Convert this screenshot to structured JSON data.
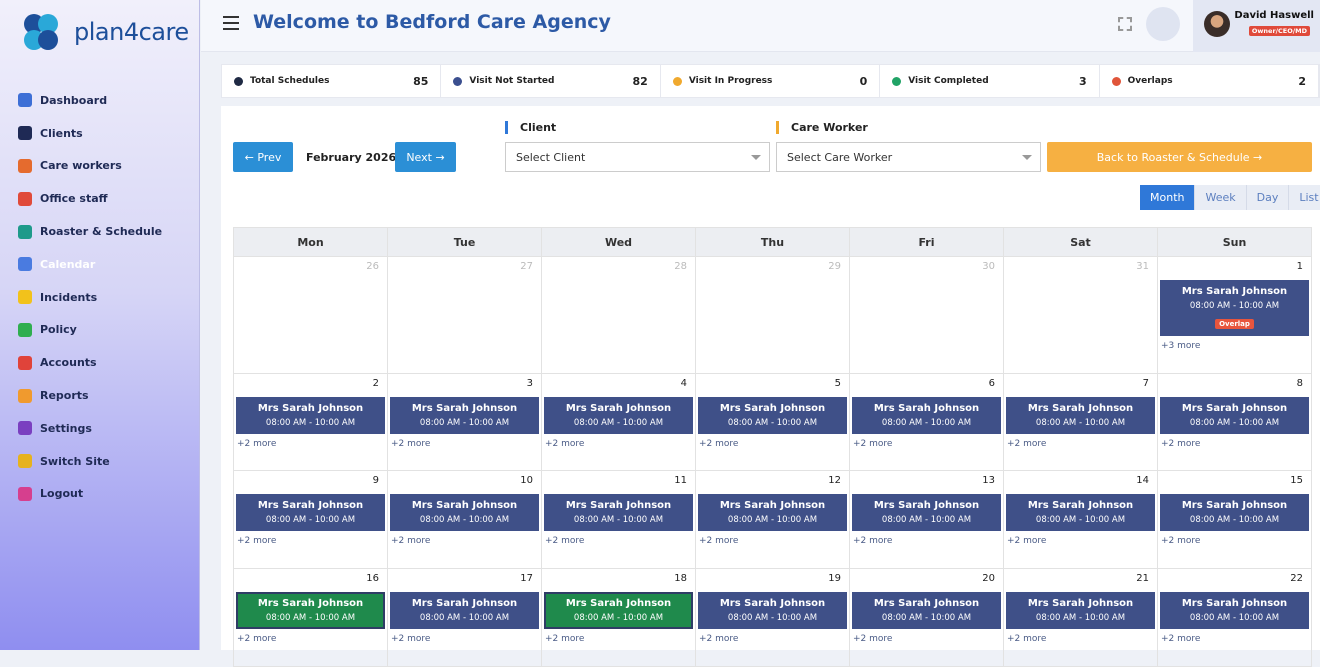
{
  "brand": {
    "name": "plan4care"
  },
  "sidebar": {
    "items": [
      "Dashboard",
      "Clients",
      "Care workers",
      "Office staff",
      "Roaster & Schedule",
      "Calendar",
      "Incidents",
      "Policy",
      "Accounts",
      "Reports",
      "Settings",
      "Switch Site",
      "Logout"
    ],
    "active": 5
  },
  "header": {
    "title": "Welcome to Bedford Care Agency",
    "user": {
      "name": "David Haswell",
      "role": "Owner/CEO/MD"
    }
  },
  "stats": [
    {
      "label": "Total Schedules",
      "value": 85,
      "color": "#1f2a44"
    },
    {
      "label": "Visit Not Started",
      "value": 82,
      "color": "#3b4f8f"
    },
    {
      "label": "Visit In Progress",
      "value": 0,
      "color": "#f0a92e"
    },
    {
      "label": "Visit Completed",
      "value": 3,
      "color": "#21a366"
    },
    {
      "label": "Overlaps",
      "value": 2,
      "color": "#e0553a"
    }
  ],
  "toolbar": {
    "prev": "← Prev",
    "month": "February 2026",
    "next": "Next →",
    "client_label": "Client",
    "client_placeholder": "Select Client",
    "worker_label": "Care Worker",
    "worker_placeholder": "Select Care Worker",
    "back": "Back to Roaster & Schedule →"
  },
  "views": [
    {
      "label": "Month",
      "active": true
    },
    {
      "label": "Week",
      "active": false
    },
    {
      "label": "Day",
      "active": false
    },
    {
      "label": "List",
      "active": false
    }
  ],
  "calendar": {
    "weekdays": [
      "Mon",
      "Tue",
      "Wed",
      "Thu",
      "Fri",
      "Sat",
      "Sun"
    ],
    "weeks": [
      [
        {
          "day": 26,
          "muted": true
        },
        {
          "day": 27,
          "muted": true
        },
        {
          "day": 28,
          "muted": true
        },
        {
          "day": 29,
          "muted": true
        },
        {
          "day": 30,
          "muted": true
        },
        {
          "day": 31,
          "muted": true
        },
        {
          "day": 1,
          "events": [
            {
              "name": "Mrs Sarah Johnson",
              "time": "08:00 AM - 10:00 AM",
              "badge": "Overlap",
              "color": "#3f5088"
            }
          ],
          "more": "+3 more"
        }
      ],
      [
        {
          "day": 2,
          "events": [
            {
              "name": "Mrs Sarah Johnson",
              "time": "08:00 AM - 10:00 AM",
              "color": "#3f5088"
            }
          ],
          "more": "+2 more"
        },
        {
          "day": 3,
          "events": [
            {
              "name": "Mrs Sarah Johnson",
              "time": "08:00 AM - 10:00 AM",
              "color": "#3f5088"
            }
          ],
          "more": "+2 more"
        },
        {
          "day": 4,
          "events": [
            {
              "name": "Mrs Sarah Johnson",
              "time": "08:00 AM - 10:00 AM",
              "color": "#3f5088"
            }
          ],
          "more": "+2 more"
        },
        {
          "day": 5,
          "events": [
            {
              "name": "Mrs Sarah Johnson",
              "time": "08:00 AM - 10:00 AM",
              "color": "#3f5088"
            }
          ],
          "more": "+2 more"
        },
        {
          "day": 6,
          "events": [
            {
              "name": "Mrs Sarah Johnson",
              "time": "08:00 AM - 10:00 AM",
              "color": "#3f5088"
            }
          ],
          "more": "+2 more"
        },
        {
          "day": 7,
          "events": [
            {
              "name": "Mrs Sarah Johnson",
              "time": "08:00 AM - 10:00 AM",
              "color": "#3f5088"
            }
          ],
          "more": "+2 more"
        },
        {
          "day": 8,
          "events": [
            {
              "name": "Mrs Sarah Johnson",
              "time": "08:00 AM - 10:00 AM",
              "color": "#3f5088"
            }
          ],
          "more": "+2 more"
        }
      ],
      [
        {
          "day": 9,
          "events": [
            {
              "name": "Mrs Sarah Johnson",
              "time": "08:00 AM - 10:00 AM",
              "color": "#3f5088"
            }
          ],
          "more": "+2 more"
        },
        {
          "day": 10,
          "events": [
            {
              "name": "Mrs Sarah Johnson",
              "time": "08:00 AM - 10:00 AM",
              "color": "#3f5088"
            }
          ],
          "more": "+2 more"
        },
        {
          "day": 11,
          "events": [
            {
              "name": "Mrs Sarah Johnson",
              "time": "08:00 AM - 10:00 AM",
              "color": "#3f5088"
            }
          ],
          "more": "+2 more"
        },
        {
          "day": 12,
          "events": [
            {
              "name": "Mrs Sarah Johnson",
              "time": "08:00 AM - 10:00 AM",
              "color": "#3f5088"
            }
          ],
          "more": "+2 more"
        },
        {
          "day": 13,
          "events": [
            {
              "name": "Mrs Sarah Johnson",
              "time": "08:00 AM - 10:00 AM",
              "color": "#3f5088"
            }
          ],
          "more": "+2 more"
        },
        {
          "day": 14,
          "events": [
            {
              "name": "Mrs Sarah Johnson",
              "time": "08:00 AM - 10:00 AM",
              "color": "#3f5088"
            }
          ],
          "more": "+2 more"
        },
        {
          "day": 15,
          "events": [
            {
              "name": "Mrs Sarah Johnson",
              "time": "08:00 AM - 10:00 AM",
              "color": "#3f5088"
            }
          ],
          "more": "+2 more"
        }
      ],
      [
        {
          "day": 16,
          "events": [
            {
              "name": "Mrs Sarah Johnson",
              "time": "08:00 AM - 10:00 AM",
              "color": "#1f8a4c"
            }
          ],
          "more": "+2 more"
        },
        {
          "day": 17,
          "events": [
            {
              "name": "Mrs Sarah Johnson",
              "time": "08:00 AM - 10:00 AM",
              "color": "#3f5088"
            }
          ],
          "more": "+2 more"
        },
        {
          "day": 18,
          "events": [
            {
              "name": "Mrs Sarah Johnson",
              "time": "08:00 AM - 10:00 AM",
              "color": "#1f8a4c"
            }
          ],
          "more": "+2 more"
        },
        {
          "day": 19,
          "events": [
            {
              "name": "Mrs Sarah Johnson",
              "time": "08:00 AM - 10:00 AM",
              "color": "#3f5088"
            }
          ],
          "more": "+2 more"
        },
        {
          "day": 20,
          "events": [
            {
              "name": "Mrs Sarah Johnson",
              "time": "08:00 AM - 10:00 AM",
              "color": "#3f5088"
            }
          ],
          "more": "+2 more"
        },
        {
          "day": 21,
          "events": [
            {
              "name": "Mrs Sarah Johnson",
              "time": "08:00 AM - 10:00 AM",
              "color": "#3f5088"
            }
          ],
          "more": "+2 more"
        },
        {
          "day": 22,
          "events": [
            {
              "name": "Mrs Sarah Johnson",
              "time": "08:00 AM - 10:00 AM",
              "color": "#3f5088"
            }
          ],
          "more": "+2 more"
        }
      ]
    ]
  }
}
